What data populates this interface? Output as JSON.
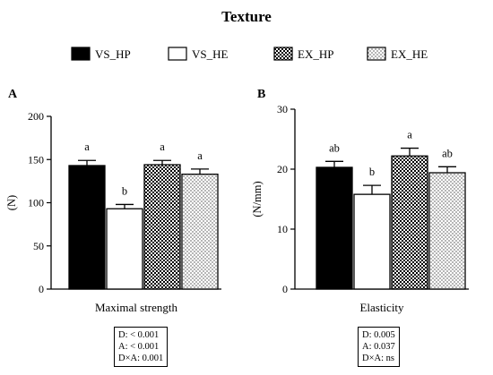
{
  "figure_title": "Texture",
  "legend": [
    {
      "label": "VS_HP",
      "fill": "solid"
    },
    {
      "label": "VS_HE",
      "fill": "empty"
    },
    {
      "label": "EX_HP",
      "fill": "checker"
    },
    {
      "label": "EX_HE",
      "fill": "dots"
    }
  ],
  "colors": {
    "bar_edge": "#000000",
    "solid": "#000000",
    "empty": "#ffffff"
  },
  "chart_data": [
    {
      "type": "bar",
      "panel_label": "A",
      "title": "",
      "xlabel": "Maximal strength",
      "ylabel": "(N)",
      "ylim": [
        0,
        200
      ],
      "yticks": [
        "0",
        "50",
        "100",
        "150",
        "200"
      ],
      "grid": false,
      "legend_position": "top-center (shared)",
      "series": [
        {
          "name": "VS_HP",
          "values": [
            143
          ],
          "error": [
            6
          ],
          "letter": "a"
        },
        {
          "name": "VS_HE",
          "values": [
            93
          ],
          "error": [
            5
          ],
          "letter": "b"
        },
        {
          "name": "EX_HP",
          "values": [
            144
          ],
          "error": [
            5
          ],
          "letter": "a"
        },
        {
          "name": "EX_HE",
          "values": [
            133
          ],
          "error": [
            6
          ],
          "letter": "a"
        }
      ],
      "stats": [
        "D: < 0.001",
        "A: < 0.001",
        "D×A: 0.001"
      ]
    },
    {
      "type": "bar",
      "panel_label": "B",
      "title": "",
      "xlabel": "Elasticity",
      "ylabel": "(N/mm)",
      "ylim": [
        0,
        30
      ],
      "yticks": [
        "0",
        "10",
        "20",
        "30"
      ],
      "grid": false,
      "legend_position": "top-center (shared)",
      "series": [
        {
          "name": "VS_HP",
          "values": [
            20.3
          ],
          "error": [
            1.0
          ],
          "letter": "ab"
        },
        {
          "name": "VS_HE",
          "values": [
            15.8
          ],
          "error": [
            1.5
          ],
          "letter": "b"
        },
        {
          "name": "EX_HP",
          "values": [
            22.2
          ],
          "error": [
            1.3
          ],
          "letter": "a"
        },
        {
          "name": "EX_HE",
          "values": [
            19.4
          ],
          "error": [
            1.0
          ],
          "letter": "ab"
        }
      ],
      "stats": [
        "D: 0.005",
        "A: 0.037",
        "D×A: ns"
      ]
    }
  ]
}
